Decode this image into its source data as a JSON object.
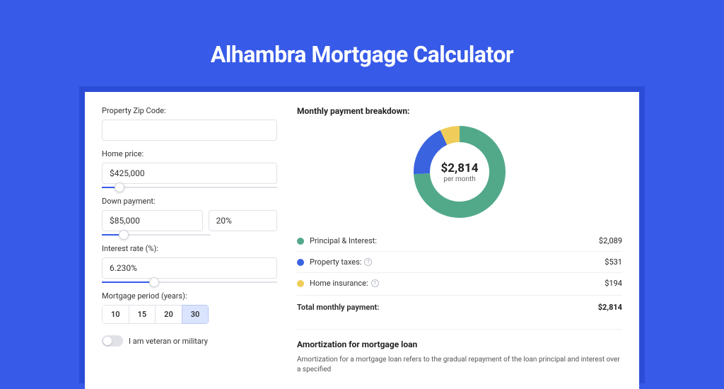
{
  "title": "Alhambra Mortgage Calculator",
  "form": {
    "zip": {
      "label": "Property Zip Code:",
      "value": ""
    },
    "home_price": {
      "label": "Home price:",
      "value": "$425,000",
      "slider_pct": 10
    },
    "down_payment": {
      "label": "Down payment:",
      "value": "$85,000",
      "pct_value": "20%",
      "slider_pct": 20
    },
    "interest_rate": {
      "label": "Interest rate (%):",
      "value": "6.230%",
      "slider_pct": 30
    },
    "period": {
      "label": "Mortgage period (years):",
      "options": [
        "10",
        "15",
        "20",
        "30"
      ],
      "selected": "30"
    },
    "veteran": {
      "label": "I am veteran or military",
      "checked": false
    }
  },
  "breakdown": {
    "title": "Monthly payment breakdown:",
    "center_amount": "$2,814",
    "center_sub": "per month",
    "donut": {
      "type": "donut",
      "slices": [
        {
          "key": "principal_interest",
          "value": 2089,
          "color": "#52a98a"
        },
        {
          "key": "property_taxes",
          "value": 531,
          "color": "#3a63e0"
        },
        {
          "key": "home_insurance",
          "value": 194,
          "color": "#f0cd5a"
        }
      ],
      "inner_radius": 42,
      "outer_radius": 65,
      "background": "#ffffff"
    },
    "items": [
      {
        "label": "Principal & Interest:",
        "value": "$2,089",
        "color": "#52a98a",
        "info": false
      },
      {
        "label": "Property taxes:",
        "value": "$531",
        "color": "#3a63e0",
        "info": true
      },
      {
        "label": "Home insurance:",
        "value": "$194",
        "color": "#f0cd5a",
        "info": true
      }
    ],
    "total": {
      "label": "Total monthly payment:",
      "value": "$2,814"
    }
  },
  "amortization": {
    "title": "Amortization for mortgage loan",
    "text": "Amortization for a mortgage loan refers to the gradual repayment of the loan principal and interest over a specified"
  },
  "colors": {
    "page_bg": "#375ae8",
    "card_wrap_bg": "#2b4cd6",
    "card_bg": "#ffffff",
    "border": "#e0e2e8",
    "tab_active_bg": "#dbe4ff"
  }
}
